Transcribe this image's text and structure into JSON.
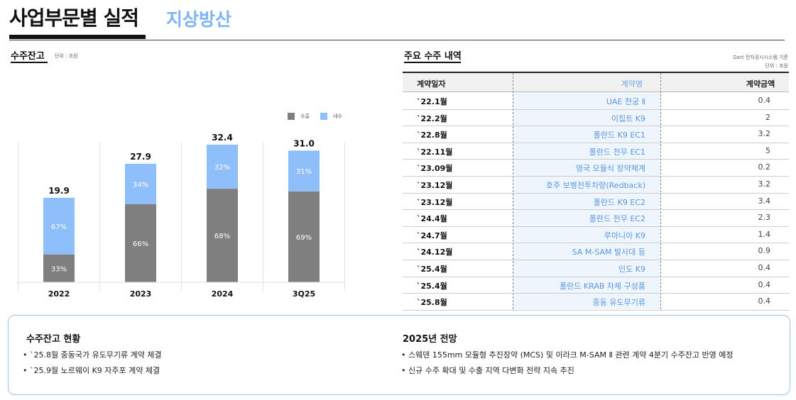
{
  "header": {
    "title": "사업부문별 실적",
    "subtitle": "지상방산"
  },
  "left": {
    "title": "수주잔고",
    "unit": "단위 : 조원"
  },
  "right": {
    "title": "주요 수주 내역",
    "source": "Dart 전자공시시스템 기준",
    "unit": "단위 : 조원",
    "columns": [
      "계약일자",
      "계약명",
      "계약금액"
    ],
    "rows": [
      {
        "date": "`22.1월",
        "name": "UAE 천궁 Ⅱ",
        "amount": "0.4"
      },
      {
        "date": "`22.2월",
        "name": "이집트 K9",
        "amount": "2"
      },
      {
        "date": "`22.8월",
        "name": "폴란드 K9 EC1",
        "amount": "3.2"
      },
      {
        "date": "`22.11월",
        "name": "폴란드 천무 EC1",
        "amount": "5"
      },
      {
        "date": "`23.09월",
        "name": "영국 모듈식 장약체계",
        "amount": "0.2"
      },
      {
        "date": "`23.12월",
        "name": "호주 보병전투차량(Redback)",
        "amount": "3.2"
      },
      {
        "date": "`23.12월",
        "name": "폴란드 K9 EC2",
        "amount": "3.4"
      },
      {
        "date": "`24.4월",
        "name": "폴란드 천무 EC2",
        "amount": "2.3"
      },
      {
        "date": "`24.7월",
        "name": "루마니아 K9",
        "amount": "1.4"
      },
      {
        "date": "`24.12월",
        "name": "SA M-SAM 발사대 등",
        "amount": "0.9"
      },
      {
        "date": "`25.4월",
        "name": "인도 K9",
        "amount": "0.4"
      },
      {
        "date": "`25.4월",
        "name": "폴란드 KRAB 차체 구성품",
        "amount": "0.4"
      },
      {
        "date": "`25.8월",
        "name": "중동 유도무기류",
        "amount": "0.4"
      }
    ]
  },
  "chart_data": {
    "type": "bar",
    "stacked": true,
    "categories": [
      "2022",
      "2023",
      "2024",
      "3Q25"
    ],
    "totals": [
      "19.9",
      "27.9",
      "32.4",
      "31.0"
    ],
    "total_values": [
      19.9,
      27.9,
      32.4,
      31.0
    ],
    "series": [
      {
        "name": "수출",
        "share_pct": [
          33,
          66,
          68,
          69
        ],
        "labels": [
          "33%",
          "66%",
          "68%",
          "69%"
        ],
        "color": "#7f7f7f"
      },
      {
        "name": "내수",
        "share_pct": [
          67,
          34,
          32,
          31
        ],
        "labels": [
          "67%",
          "34%",
          "32%",
          "31%"
        ],
        "color": "#8fbffa"
      }
    ],
    "ylim": [
      0,
      35
    ],
    "legend": "top-right",
    "grid": false
  },
  "summary": {
    "left_title": "수주잔고 현황",
    "left_bullets": [
      "•  `25.8월 중동국가 유도무기류 계약 체결",
      "•  `25.9월 노르웨이 K9 자주포 계약 체결"
    ],
    "right_title": "2025년 전망",
    "right_bullets": [
      "• 스웨덴 155mm 모듈형 추진장약 (MCS) 및 이라크 M-SAM Ⅱ 관련 계약 4분기 수주잔고 반영 예정",
      "• 신규 수주 확대 및 수출 지역 다변화 전략 지속 추진"
    ]
  }
}
